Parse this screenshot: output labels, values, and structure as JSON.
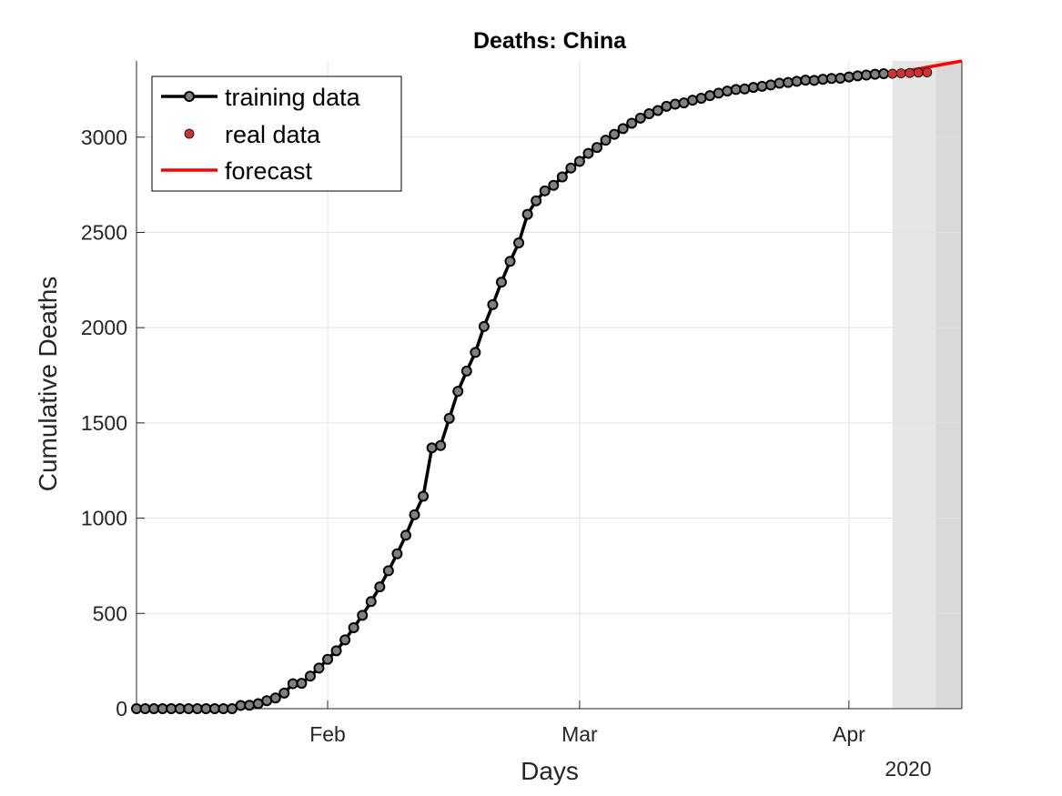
{
  "chart_data": {
    "type": "line",
    "title": "Deaths: China",
    "xlabel": "Days",
    "ylabel": "Cumulative Deaths",
    "year_label": "2020",
    "x_start": "2020-01-10",
    "x_end": "2020-04-14",
    "xticks": [
      {
        "date": "2020-02-01",
        "label": "Feb"
      },
      {
        "date": "2020-03-01",
        "label": "Mar"
      },
      {
        "date": "2020-04-01",
        "label": "Apr"
      }
    ],
    "ylim": [
      0,
      3400
    ],
    "yticks": [
      0,
      500,
      1000,
      1500,
      2000,
      2500,
      3000
    ],
    "grid": true,
    "legend_position": "top-left",
    "shaded_regions": [
      {
        "start": "2020-04-06",
        "end": "2020-04-11",
        "color": "#e6e6e6"
      },
      {
        "start": "2020-04-11",
        "end": "2020-04-17",
        "color": "#d9d9d9"
      }
    ],
    "series": [
      {
        "name": "training data",
        "style": "line-with-markers",
        "color": "#000000",
        "marker_color": "#808080",
        "x": [
          "2020-01-10",
          "2020-01-11",
          "2020-01-12",
          "2020-01-13",
          "2020-01-14",
          "2020-01-15",
          "2020-01-16",
          "2020-01-17",
          "2020-01-18",
          "2020-01-19",
          "2020-01-20",
          "2020-01-21",
          "2020-01-22",
          "2020-01-23",
          "2020-01-24",
          "2020-01-25",
          "2020-01-26",
          "2020-01-27",
          "2020-01-28",
          "2020-01-29",
          "2020-01-30",
          "2020-01-31",
          "2020-02-01",
          "2020-02-02",
          "2020-02-03",
          "2020-02-04",
          "2020-02-05",
          "2020-02-06",
          "2020-02-07",
          "2020-02-08",
          "2020-02-09",
          "2020-02-10",
          "2020-02-11",
          "2020-02-12",
          "2020-02-13",
          "2020-02-14",
          "2020-02-15",
          "2020-02-16",
          "2020-02-17",
          "2020-02-18",
          "2020-02-19",
          "2020-02-20",
          "2020-02-21",
          "2020-02-22",
          "2020-02-23",
          "2020-02-24",
          "2020-02-25",
          "2020-02-26",
          "2020-02-27",
          "2020-02-28",
          "2020-02-29",
          "2020-03-01",
          "2020-03-02",
          "2020-03-03",
          "2020-03-04",
          "2020-03-05",
          "2020-03-06",
          "2020-03-07",
          "2020-03-08",
          "2020-03-09",
          "2020-03-10",
          "2020-03-11",
          "2020-03-12",
          "2020-03-13",
          "2020-03-14",
          "2020-03-15",
          "2020-03-16",
          "2020-03-17",
          "2020-03-18",
          "2020-03-19",
          "2020-03-20",
          "2020-03-21",
          "2020-03-22",
          "2020-03-23",
          "2020-03-24",
          "2020-03-25",
          "2020-03-26",
          "2020-03-27",
          "2020-03-28",
          "2020-03-29",
          "2020-03-30",
          "2020-03-31",
          "2020-04-01",
          "2020-04-02",
          "2020-04-03",
          "2020-04-04",
          "2020-04-05"
        ],
        "values": [
          0,
          0,
          0,
          0,
          0,
          0,
          0,
          0,
          0,
          0,
          0,
          0,
          17,
          18,
          26,
          42,
          56,
          82,
          131,
          133,
          171,
          213,
          259,
          304,
          361,
          425,
          490,
          562,
          639,
          724,
          813,
          910,
          1018,
          1115,
          1369,
          1381,
          1524,
          1666,
          1772,
          1870,
          2006,
          2121,
          2239,
          2348,
          2445,
          2595,
          2666,
          2718,
          2747,
          2791,
          2838,
          2873,
          2915,
          2946,
          2984,
          3015,
          3045,
          3073,
          3100,
          3123,
          3140,
          3162,
          3173,
          3180,
          3194,
          3204,
          3218,
          3231,
          3242,
          3250,
          3253,
          3261,
          3267,
          3274,
          3283,
          3287,
          3293,
          3299,
          3298,
          3304,
          3308,
          3309,
          3316,
          3322,
          3326,
          3330,
          3333
        ]
      },
      {
        "name": "real data",
        "style": "markers",
        "color": "#cc3333",
        "x": [
          "2020-04-06",
          "2020-04-07",
          "2020-04-08",
          "2020-04-09",
          "2020-04-10"
        ],
        "values": [
          3333,
          3335,
          3337,
          3339,
          3340
        ]
      },
      {
        "name": "forecast",
        "style": "line",
        "color": "#ff0000",
        "x": [
          "2020-04-06",
          "2020-04-14"
        ],
        "values": [
          3334,
          3400
        ]
      }
    ]
  }
}
